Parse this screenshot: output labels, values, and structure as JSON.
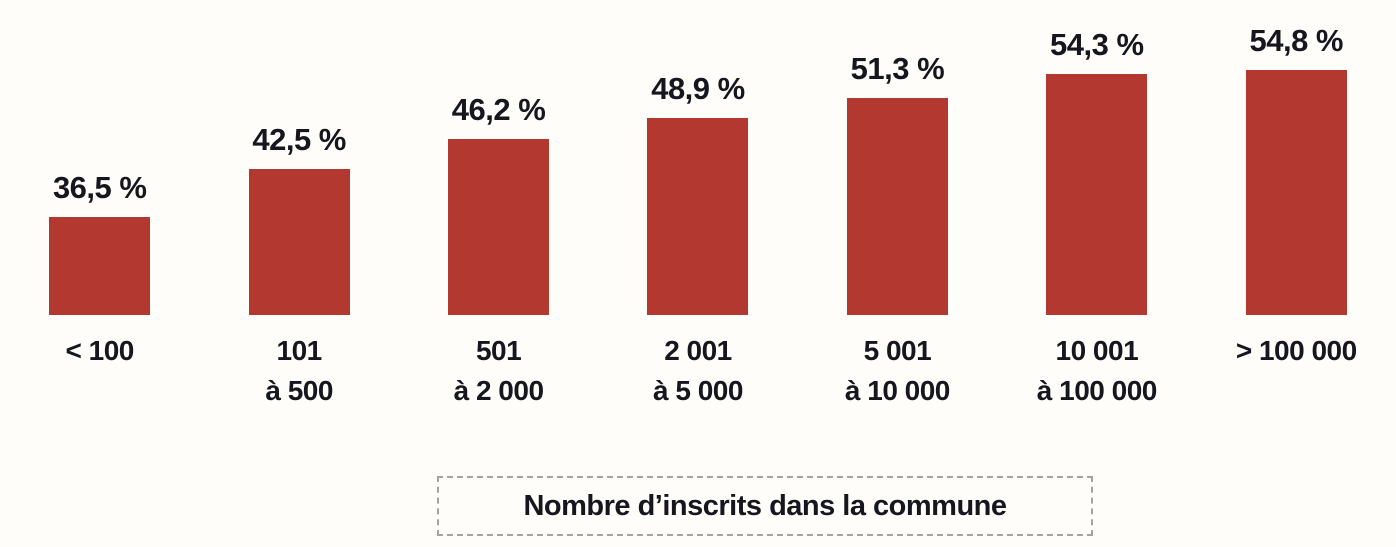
{
  "chart_data": {
    "type": "bar",
    "title": "",
    "xlabel": "Nombre d’inscrits dans la commune",
    "ylabel": "",
    "categories": [
      [
        "< 100",
        ""
      ],
      [
        "101",
        "à 500"
      ],
      [
        "501",
        "à 2 000"
      ],
      [
        "2 001",
        "à 5 000"
      ],
      [
        "5 001",
        "à 10 000"
      ],
      [
        "10 001",
        "à 100 000"
      ],
      [
        "> 100 000",
        ""
      ]
    ],
    "values": [
      36.5,
      42.5,
      46.2,
      48.9,
      51.3,
      54.3,
      54.8
    ],
    "value_labels": [
      "36,5 %",
      "42,5 %",
      "46,2 %",
      "48,9 %",
      "51,3 %",
      "54,3 %",
      "54,8 %"
    ],
    "unit": "%",
    "ylim": [
      24.25,
      63.6
    ],
    "grid": false,
    "legend": "none",
    "axis_lines": "none",
    "bar_color": "#b33830"
  },
  "caption": {
    "label": "Nombre d’inscrits dans la commune"
  },
  "colors": {
    "bar": "#b33830",
    "text": "#16161e",
    "caption_border": "#a3a3a3",
    "background": "#fefdfa"
  }
}
